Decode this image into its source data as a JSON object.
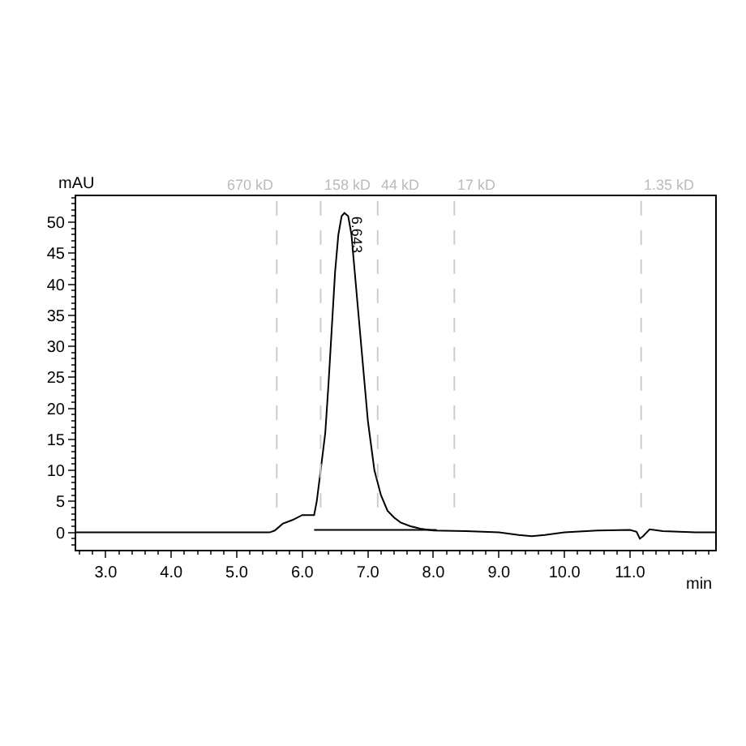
{
  "chart_data": {
    "type": "line",
    "xlabel": "min",
    "ylabel": "mAU",
    "series": [
      {
        "color": "#000000",
        "x": [
          2.55,
          4.0,
          5.5,
          5.58,
          5.7,
          5.85,
          6.0,
          6.1,
          6.18,
          6.22,
          6.28,
          6.35,
          6.4,
          6.45,
          6.5,
          6.55,
          6.6,
          6.643,
          6.7,
          6.75,
          6.8,
          6.85,
          6.9,
          6.95,
          7.0,
          7.05,
          7.1,
          7.2,
          7.3,
          7.4,
          7.5,
          7.65,
          7.8,
          8.0,
          8.5,
          9.0,
          9.3,
          9.5,
          9.7,
          10.0,
          10.5,
          11.0,
          11.1,
          11.15,
          11.2,
          11.3,
          11.5,
          12.0,
          12.3
        ],
        "values": [
          0,
          0,
          0,
          0.3,
          1.4,
          2.0,
          2.8,
          2.8,
          2.8,
          5,
          10,
          16,
          24,
          33,
          42,
          48,
          51,
          51.5,
          51,
          48,
          42,
          36,
          30,
          24,
          18,
          14,
          10,
          6,
          3.5,
          2.4,
          1.6,
          1.0,
          0.6,
          0.3,
          0.2,
          0,
          -0.4,
          -0.6,
          -0.4,
          0,
          0.3,
          0.4,
          0.1,
          -1.0,
          -0.6,
          0.5,
          0.2,
          0,
          0
        ]
      },
      {
        "color": "#000000",
        "x": [
          6.18,
          8.05
        ],
        "values": [
          0.4,
          0.4
        ]
      }
    ],
    "xlim": [
      2.55,
      12.3
    ],
    "ylim": [
      -2.8,
      54.2
    ],
    "xticks": [
      {
        "value": 3,
        "label": "3.0"
      },
      {
        "value": 4,
        "label": "4.0"
      },
      {
        "value": 5,
        "label": "5.0"
      },
      {
        "value": 6,
        "label": "6.0"
      },
      {
        "value": 7,
        "label": "7.0"
      },
      {
        "value": 8,
        "label": "8.0"
      },
      {
        "value": 9,
        "label": "9.0"
      },
      {
        "value": 10,
        "label": "10.0"
      },
      {
        "value": 11,
        "label": "11.0"
      }
    ],
    "yticks": [
      0,
      5,
      10,
      15,
      20,
      25,
      30,
      35,
      40,
      45,
      50
    ],
    "ref_lines": [
      {
        "axis": "x",
        "value": 5.61,
        "label": "670 kD",
        "color": "#cccccc",
        "line_style": "dashed"
      },
      {
        "axis": "x",
        "value": 6.28,
        "label": "158 kD",
        "color": "#cccccc",
        "line_style": "dashed"
      },
      {
        "axis": "x",
        "value": 7.15,
        "label": "44 kD",
        "color": "#cccccc",
        "line_style": "dashed"
      },
      {
        "axis": "x",
        "value": 8.32,
        "label": "17 kD",
        "color": "#cccccc",
        "line_style": "dashed"
      },
      {
        "axis": "x",
        "value": 11.17,
        "label": "1.35 kD",
        "color": "#cccccc",
        "line_style": "dashed"
      }
    ],
    "annotations": [
      {
        "text": "6.643",
        "x": 6.643,
        "y": 51.5
      }
    ],
    "grid": false,
    "marker": "none",
    "line_style": "solid"
  }
}
